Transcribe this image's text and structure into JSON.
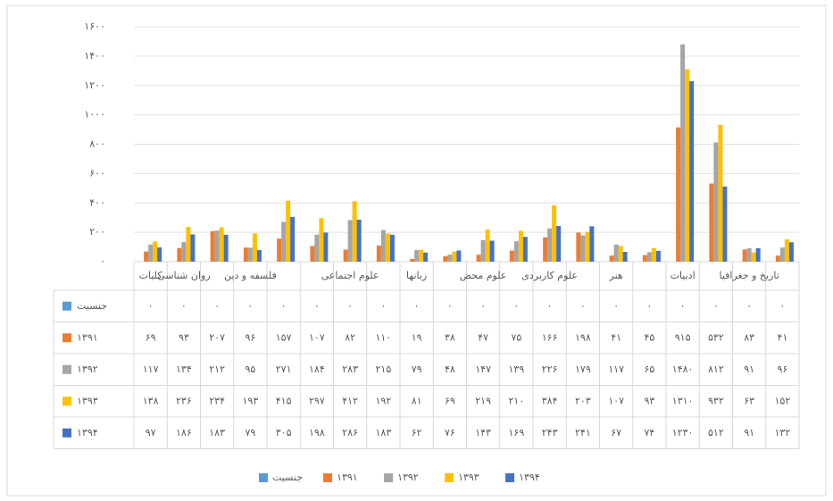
{
  "chart_data": {
    "type": "bar",
    "categories": [
      "کلیات",
      "روان شناسی",
      null,
      "فلسفه و دین",
      null,
      null,
      "علوم اجتماعی",
      null,
      "زبانها",
      null,
      "علوم محض",
      null,
      "علوم کاربردی",
      null,
      "هنر",
      null,
      "ادبیات",
      null,
      "تاریخ و جغرافیا",
      null
    ],
    "ylim": [
      0,
      1600
    ],
    "yticks": [
      {
        "value": 0,
        "label": "۰"
      },
      {
        "value": 200,
        "label": "۲۰۰"
      },
      {
        "value": 400,
        "label": "۴۰۰"
      },
      {
        "value": 600,
        "label": "۶۰۰"
      },
      {
        "value": 800,
        "label": "۸۰۰"
      },
      {
        "value": 1000,
        "label": "۱۰۰۰"
      },
      {
        "value": 1200,
        "label": "۱۲۰۰"
      },
      {
        "value": 1400,
        "label": "۱۴۰۰"
      },
      {
        "value": 1600,
        "label": "۱۶۰۰"
      }
    ],
    "grid": true,
    "series": [
      {
        "name": "جنسیت",
        "color": "#5b9bd5",
        "values": [
          0,
          0,
          0,
          0,
          0,
          0,
          0,
          0,
          0,
          0,
          0,
          0,
          0,
          0,
          0,
          0,
          0,
          0,
          0,
          0
        ],
        "value_labels": [
          "۰",
          "۰",
          "۰",
          "۰",
          "۰",
          "۰",
          "۰",
          "۰",
          "۰",
          "۰",
          "۰",
          "۰",
          "۰",
          "۰",
          "۰",
          "۰",
          "۰",
          "۰",
          "۰",
          "۰"
        ]
      },
      {
        "name": "۱۳۹۱",
        "color": "#ed7d31",
        "values": [
          69,
          93,
          207,
          96,
          157,
          107,
          82,
          110,
          19,
          38,
          47,
          75,
          166,
          198,
          41,
          45,
          915,
          532,
          83,
          41
        ],
        "value_labels": [
          "۶۹",
          "۹۳",
          "۲۰۷",
          "۹۶",
          "۱۵۷",
          "۱۰۷",
          "۸۲",
          "۱۱۰",
          "۱۹",
          "۳۸",
          "۴۷",
          "۷۵",
          "۱۶۶",
          "۱۹۸",
          "۴۱",
          "۴۵",
          "۹۱۵",
          "۵۳۲",
          "۸۳",
          "۴۱"
        ]
      },
      {
        "name": "۱۳۹۲",
        "color": "#a5a5a5",
        "values": [
          117,
          134,
          212,
          95,
          271,
          184,
          283,
          215,
          79,
          48,
          147,
          139,
          226,
          179,
          117,
          65,
          1480,
          812,
          91,
          96
        ],
        "value_labels": [
          "۱۱۷",
          "۱۳۴",
          "۲۱۲",
          "۹۵",
          "۲۷۱",
          "۱۸۴",
          "۲۸۳",
          "۲۱۵",
          "۷۹",
          "۴۸",
          "۱۴۷",
          "۱۳۹",
          "۲۲۶",
          "۱۷۹",
          "۱۱۷",
          "۶۵",
          "۱۴۸۰",
          "۸۱۲",
          "۹۱",
          "۹۶"
        ]
      },
      {
        "name": "۱۳۹۳",
        "color": "#ffc000",
        "values": [
          138,
          236,
          234,
          193,
          415,
          297,
          412,
          192,
          81,
          69,
          219,
          210,
          384,
          203,
          107,
          93,
          1310,
          932,
          63,
          152
        ],
        "value_labels": [
          "۱۳۸",
          "۲۳۶",
          "۲۳۴",
          "۱۹۳",
          "۴۱۵",
          "۲۹۷",
          "۴۱۲",
          "۱۹۲",
          "۸۱",
          "۶۹",
          "۲۱۹",
          "۲۱۰",
          "۳۸۴",
          "۲۰۳",
          "۱۰۷",
          "۹۳",
          "۱۳۱۰",
          "۹۳۲",
          "۶۳",
          "۱۵۲"
        ]
      },
      {
        "name": "۱۳۹۴",
        "color": "#4472c4",
        "values": [
          97,
          186,
          183,
          79,
          305,
          198,
          286,
          183,
          62,
          76,
          143,
          169,
          243,
          241,
          67,
          74,
          1230,
          512,
          91,
          132
        ],
        "value_labels": [
          "۹۷",
          "۱۸۶",
          "۱۸۳",
          "۷۹",
          "۳۰۵",
          "۱۹۸",
          "۲۸۶",
          "۱۸۳",
          "۶۲",
          "۷۶",
          "۱۴۳",
          "۱۶۹",
          "۲۴۳",
          "۲۴۱",
          "۶۷",
          "۷۴",
          "۱۲۳۰",
          "۵۱۲",
          "۹۱",
          "۱۳۲"
        ]
      }
    ]
  }
}
